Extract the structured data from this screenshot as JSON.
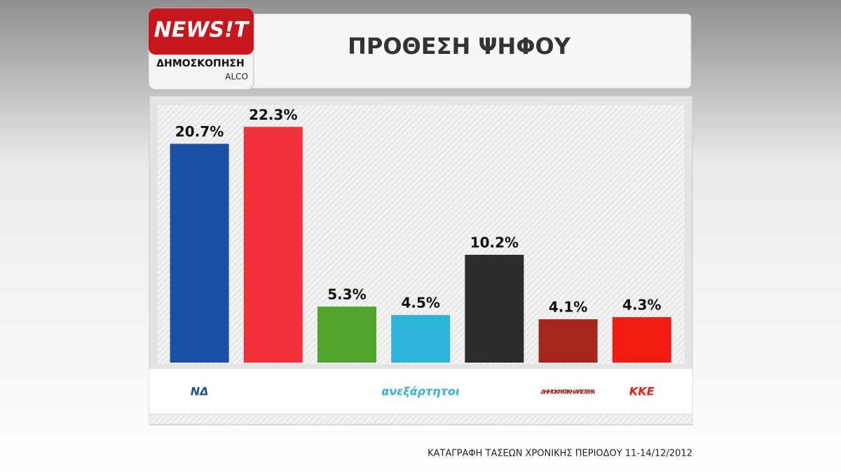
{
  "chart_data": {
    "type": "bar",
    "brand": "NEWS!T",
    "subtitle": "ΔΗΜΟΣΚΟΠΗΣΗ",
    "source": "ALCO",
    "title": "ΠΡΟΘΕΣΗ ΨΗΦΟΥ",
    "note": "ΚΑΤΑΓΡΑΦΗ ΤΑΣΕΩΝ ΧΡΟΝΙΚΗΣ ΠΕΡΙΟΔΟΥ 11-14/12/2012",
    "categories": [
      "ΝΔ",
      null,
      null,
      "ανεξάρτητοι",
      null,
      "ΔΗΜΟΚΡΑΤΙΚΗ ΑΡΙΣΤΕΡΑ",
      "ΚΚΕ"
    ],
    "values": [
      20.7,
      22.3,
      5.3,
      4.5,
      10.2,
      4.1,
      4.3
    ],
    "value_labels": [
      "20.7%",
      "22.3%",
      "5.3%",
      "4.5%",
      "10.2%",
      "4.1%",
      "4.3%"
    ],
    "colors": [
      "#1b4fa6",
      "#f0313a",
      "#52a52f",
      "#2fb4d9",
      "#2c2c2c",
      "#a6261f",
      "#f21b12"
    ]
  }
}
